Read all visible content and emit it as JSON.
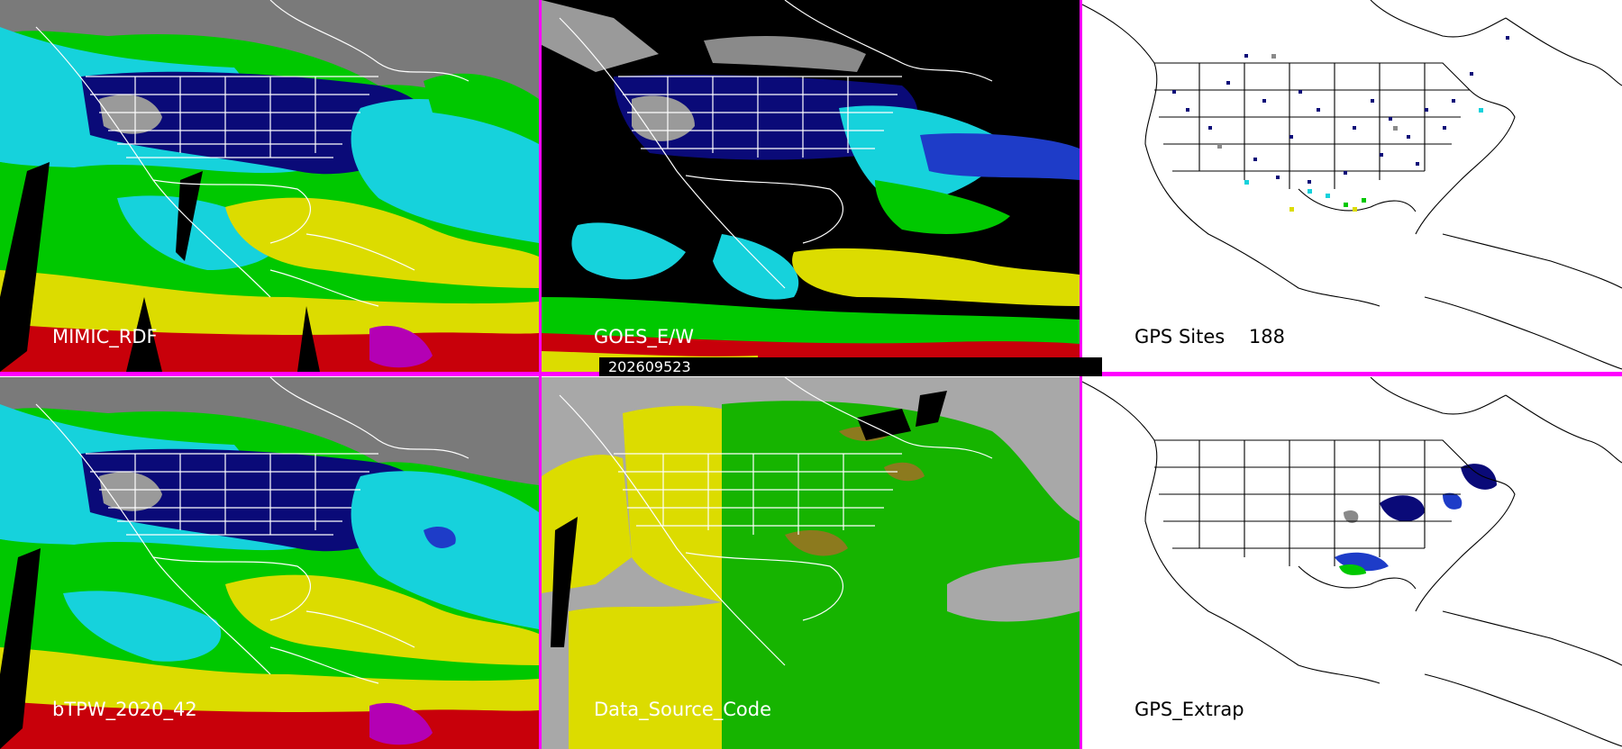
{
  "panels": {
    "mimic_rdf": {
      "label": "MIMIC_RDF"
    },
    "goes_ew": {
      "label": "GOES_E/W"
    },
    "gps_sites": {
      "label": "GPS Sites",
      "count": "188"
    },
    "btpw": {
      "label": "bTPW_2020_42"
    },
    "data_source": {
      "label": "Data_Source_Code"
    },
    "gps_extrap": {
      "label": "GPS_Extrap"
    }
  },
  "timestamp": "202609523",
  "colors": {
    "divider": "#ff00ff",
    "tpw_scale": [
      "#8a8a8a",
      "#0a0a78",
      "#1e3cc8",
      "#16d2dc",
      "#00c800",
      "#dcdc00",
      "#c8000a",
      "#b400b4"
    ],
    "data_source": {
      "background": "#a8a8a8",
      "yellow": "#dcdc00",
      "green": "#16b400",
      "brown": "#8c7a1e"
    }
  },
  "icons": [
    "map-outline",
    "gps-site-marker"
  ]
}
